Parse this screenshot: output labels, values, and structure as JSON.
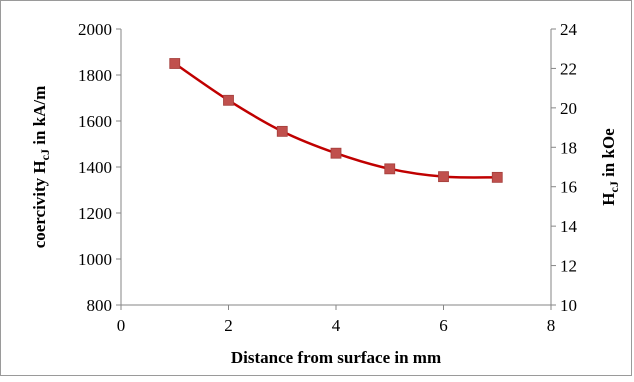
{
  "chart_data": {
    "type": "line",
    "xlabel": "Distance from surface in mm",
    "ylabel_left_parts": [
      "coercivity H",
      "cJ",
      " in kA/m"
    ],
    "ylabel_right_parts": [
      "H",
      "cJ",
      " in kOe"
    ],
    "xlim": [
      0,
      8
    ],
    "ylim_left": [
      800,
      2000
    ],
    "ylim_right": [
      10,
      24
    ],
    "x_ticks": [
      "0",
      "2",
      "4",
      "6",
      "8"
    ],
    "y_ticks_left": [
      "800",
      "1000",
      "1200",
      "1400",
      "1600",
      "1800",
      "2000"
    ],
    "y_ticks_right": [
      "10",
      "12",
      "14",
      "16",
      "18",
      "20",
      "22",
      "24"
    ],
    "grid": false,
    "series": [
      {
        "color": "#c00000",
        "marker_color": "#c0504d",
        "x": [
          1,
          2,
          3,
          4,
          5,
          6,
          7
        ],
        "y": [
          1850,
          1690,
          1555,
          1460,
          1392,
          1358,
          1355
        ]
      }
    ]
  }
}
